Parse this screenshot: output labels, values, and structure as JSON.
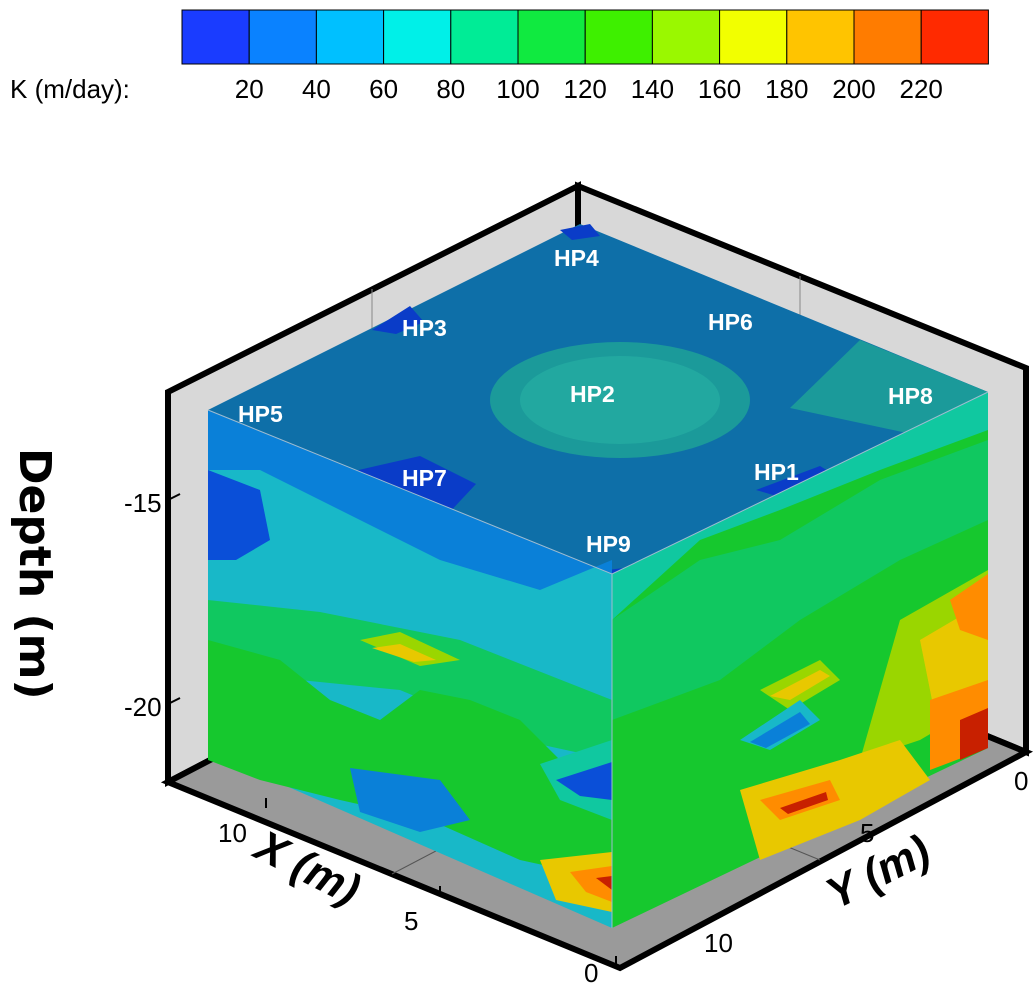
{
  "chart_data": {
    "type": "3d-contour",
    "legend": {
      "label": "K (m/day):",
      "ticks": [
        "20",
        "40",
        "60",
        "80",
        "100",
        "120",
        "140",
        "160",
        "180",
        "200",
        "220"
      ],
      "colors": [
        "#1a3cff",
        "#0a82ff",
        "#00c0ff",
        "#00f0e8",
        "#00ec96",
        "#10ea40",
        "#3ef000",
        "#9af800",
        "#f2ff00",
        "#ffc400",
        "#ff7c00",
        "#ff2a00"
      ]
    },
    "axes": {
      "depth": {
        "title": "Depth (m)",
        "ticks": [
          "-15",
          "-20"
        ]
      },
      "x": {
        "title": "X (m)",
        "ticks": [
          "10",
          "5",
          "0"
        ]
      },
      "y": {
        "title": "Y (m)",
        "ticks": [
          "0",
          "5",
          "10"
        ]
      }
    },
    "wells": [
      "HP4",
      "HP3",
      "HP6",
      "HP2",
      "HP8",
      "HP5",
      "HP7",
      "HP1",
      "HP9"
    ]
  }
}
